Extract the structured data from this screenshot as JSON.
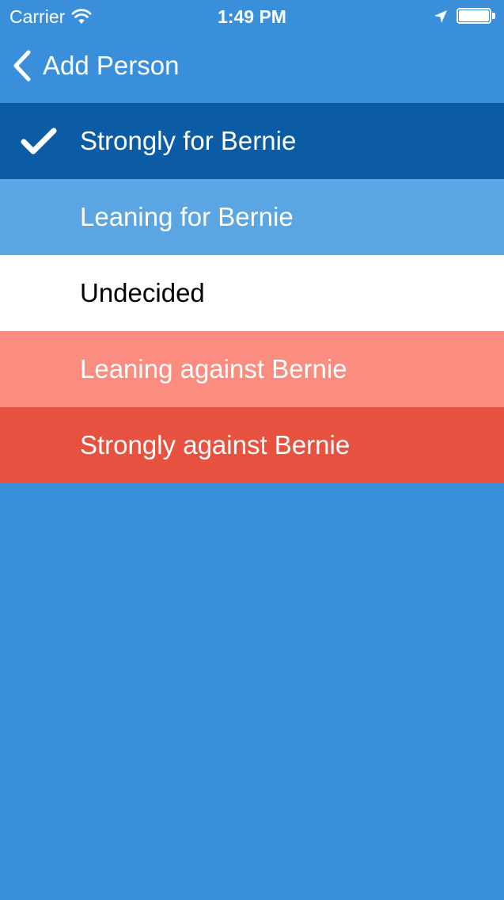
{
  "status_bar": {
    "carrier": "Carrier",
    "time": "1:49 PM",
    "wifi_icon": "wifi-icon",
    "location_icon": "location-arrow-icon",
    "battery_icon": "battery-icon",
    "battery_level": 1.0
  },
  "nav": {
    "back_label": "Add Person",
    "back_icon": "chevron-left-icon"
  },
  "options": [
    {
      "label": "Strongly for Bernie",
      "selected": true,
      "background": "#0b5ca5",
      "text_color": "#ffffff"
    },
    {
      "label": "Leaning for Bernie",
      "selected": false,
      "background": "#5aa5e2",
      "text_color": "#ffffff"
    },
    {
      "label": "Undecided",
      "selected": false,
      "background": "#ffffff",
      "text_color": "#000000"
    },
    {
      "label": "Leaning against Bernie",
      "selected": false,
      "background": "#fb8c80",
      "text_color": "#ffffff"
    },
    {
      "label": "Strongly against Bernie",
      "selected": false,
      "background": "#e75140",
      "text_color": "#ffffff"
    }
  ],
  "colors": {
    "background": "#3a8fda",
    "text_light": "#ffffff"
  },
  "check_icon": "checkmark-icon"
}
